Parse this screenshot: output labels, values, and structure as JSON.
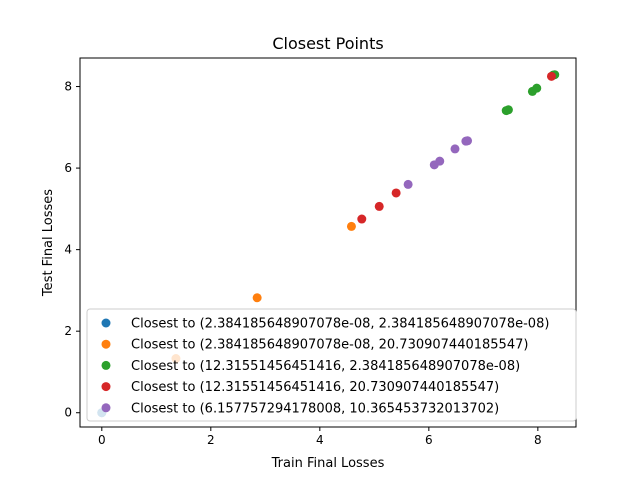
{
  "chart_data": {
    "type": "scatter",
    "title": "Closest Points",
    "xlabel": "Train Final Losses",
    "ylabel": "Test Final Losses",
    "xlim": [
      -0.4,
      8.7
    ],
    "ylim": [
      -0.35,
      8.7
    ],
    "xticks": [
      0,
      2,
      4,
      6,
      8
    ],
    "yticks": [
      0,
      2,
      4,
      6,
      8
    ],
    "grid": false,
    "legend_position": "lower-left",
    "series": [
      {
        "name": "Closest to (2.384185648907078e-08, 2.384185648907078e-08)",
        "color": "#1f77b4",
        "points": [
          [
            0.0,
            0.0
          ],
          [
            0.0,
            0.0
          ]
        ]
      },
      {
        "name": "Closest to (2.384185648907078e-08, 20.730907440185547)",
        "color": "#ff7f0e",
        "points": [
          [
            1.36,
            1.33
          ],
          [
            2.85,
            2.82
          ],
          [
            4.58,
            4.57
          ]
        ]
      },
      {
        "name": "Closest to (12.31551456451416, 2.384185648907078e-08)",
        "color": "#2ca02c",
        "points": [
          [
            7.42,
            7.41
          ],
          [
            7.46,
            7.43
          ],
          [
            7.9,
            7.88
          ],
          [
            7.98,
            7.96
          ],
          [
            8.28,
            8.28
          ],
          [
            8.31,
            8.29
          ]
        ]
      },
      {
        "name": "Closest to (12.31551456451416, 20.730907440185547)",
        "color": "#d62728",
        "points": [
          [
            4.77,
            4.75
          ],
          [
            5.09,
            5.06
          ],
          [
            5.4,
            5.39
          ],
          [
            8.25,
            8.25
          ]
        ]
      },
      {
        "name": "Closest to (6.157757294178008, 10.365453732013702)",
        "color": "#9467bd",
        "points": [
          [
            5.62,
            5.6
          ],
          [
            6.1,
            6.08
          ],
          [
            6.2,
            6.17
          ],
          [
            6.48,
            6.47
          ],
          [
            6.68,
            6.66
          ],
          [
            6.71,
            6.67
          ]
        ]
      }
    ]
  }
}
